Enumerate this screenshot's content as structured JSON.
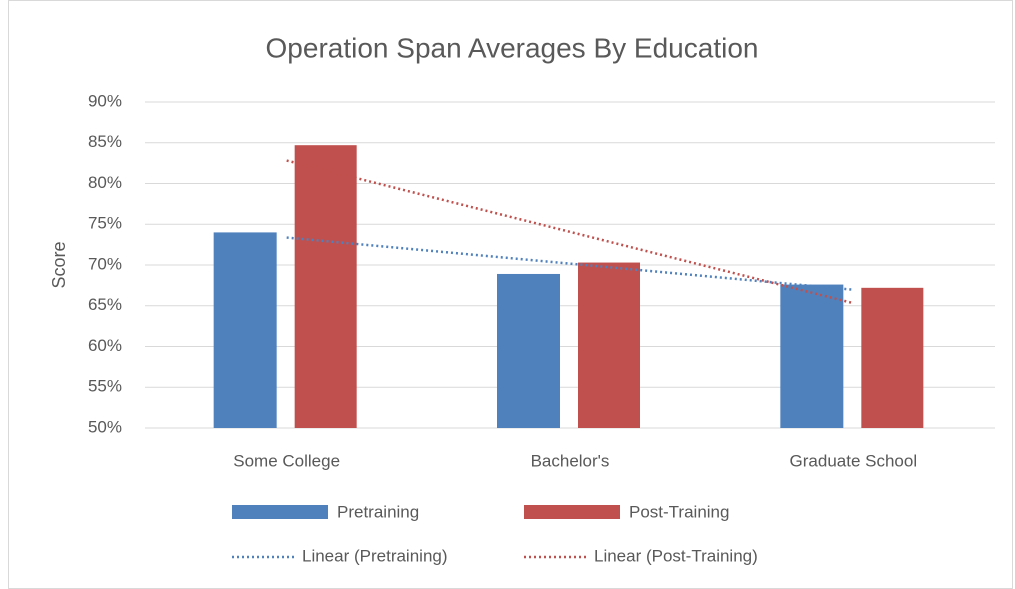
{
  "chart_data": {
    "type": "bar",
    "title": "Operation Span Averages By Education",
    "y_label": "Score",
    "categories": [
      "Some College",
      "Bachelor's",
      "Graduate School"
    ],
    "series": [
      {
        "name": "Pretraining",
        "color": "#4f81bd",
        "values": [
          74,
          68.9,
          67.6
        ],
        "trendline": {
          "type": "linear",
          "name": "Linear (Pretraining)",
          "color": "#4f81bd"
        }
      },
      {
        "name": "Post-Training",
        "color": "#c0504d",
        "values": [
          84.7,
          70.3,
          67.2
        ],
        "trendline": {
          "type": "linear",
          "name": "Linear (Post-Training)",
          "color": "#c0504d"
        }
      }
    ],
    "ylim": [
      50,
      90
    ],
    "yticks": [
      {
        "value": 50,
        "label": "50%"
      },
      {
        "value": 55,
        "label": "55%"
      },
      {
        "value": 60,
        "label": "60%"
      },
      {
        "value": 65,
        "label": "65%"
      },
      {
        "value": 70,
        "label": "70%"
      },
      {
        "value": 75,
        "label": "75%"
      },
      {
        "value": 80,
        "label": "80%"
      },
      {
        "value": 85,
        "label": "85%"
      },
      {
        "value": 90,
        "label": "90%"
      }
    ],
    "grid": true,
    "legend": "bottom"
  }
}
